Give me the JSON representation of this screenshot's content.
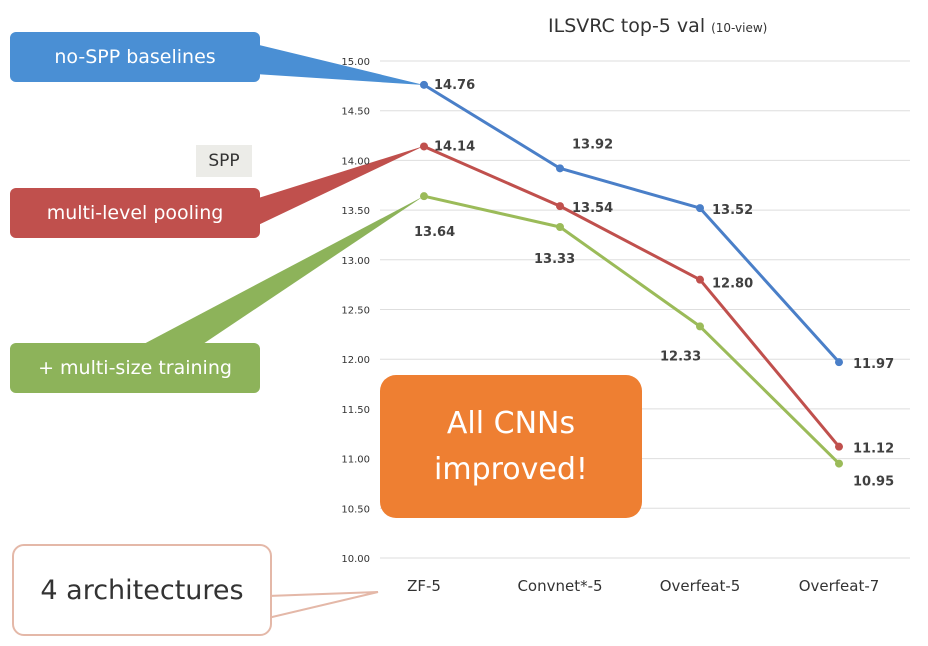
{
  "chart_data": {
    "type": "line",
    "title": "ILSVRC top-5 val",
    "subtitle": "(10-view)",
    "categories": [
      "ZF-5",
      "Convnet*-5",
      "Overfeat-5",
      "Overfeat-7"
    ],
    "ylim": [
      10.0,
      15.0
    ],
    "yticks": [
      "10.00",
      "10.50",
      "11.00",
      "11.50",
      "12.00",
      "12.50",
      "13.00",
      "13.50",
      "14.00",
      "14.50",
      "15.00"
    ],
    "grid": true,
    "series": [
      {
        "name": "no-SPP baselines",
        "color": "#4a7fc8",
        "values": [
          14.76,
          13.92,
          13.52,
          11.97
        ],
        "labels": [
          "14.76",
          "13.92",
          "13.52",
          "11.97"
        ]
      },
      {
        "name": "multi-level pooling",
        "color": "#c0504d",
        "values": [
          14.14,
          13.54,
          12.8,
          11.12
        ],
        "labels": [
          "14.14",
          "13.54",
          "12.80",
          "11.12"
        ]
      },
      {
        "name": "+ multi-size training",
        "color": "#9bbb59",
        "values": [
          13.64,
          13.33,
          12.33,
          10.95
        ],
        "labels": [
          "13.64",
          "13.33",
          "12.33",
          "10.95"
        ]
      }
    ]
  },
  "callouts": {
    "no_spp": "no-SPP baselines",
    "spp": "SPP",
    "multi_level": "multi-level pooling",
    "multi_size": "+ multi-size training",
    "all_improved_line1": "All CNNs",
    "all_improved_line2": "improved!",
    "architectures": "4 architectures"
  },
  "colors": {
    "callout_blue": "#4a8fd4",
    "callout_red": "#c0504d",
    "callout_green": "#8db35a",
    "highlight_orange": "#ee7f32"
  }
}
